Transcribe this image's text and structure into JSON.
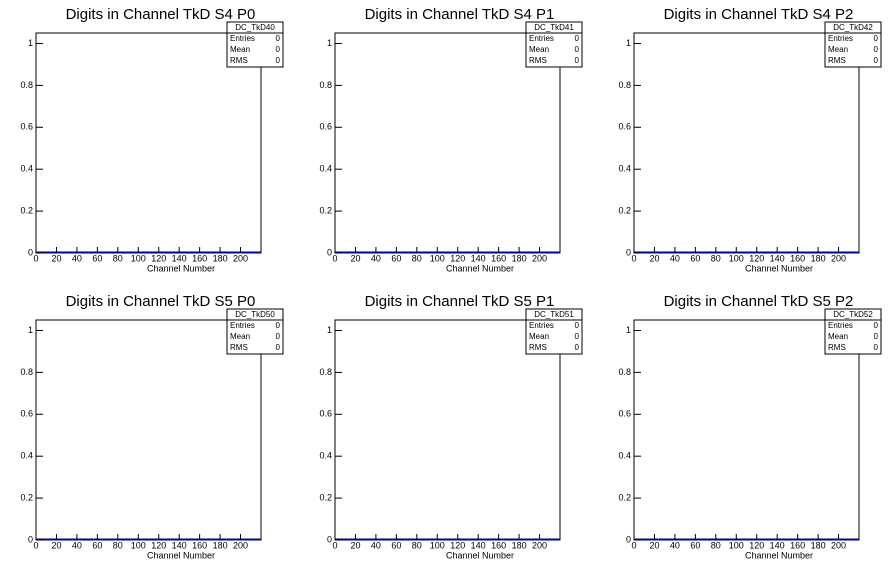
{
  "chart_data": [
    {
      "type": "histogram",
      "title": "Digits in Channel TkD S4 P0",
      "x_label": "Channel Number",
      "xlim": [
        0,
        220
      ],
      "ylim": [
        0,
        1.05
      ],
      "xticks": [
        0,
        20,
        40,
        60,
        80,
        100,
        120,
        140,
        160,
        180,
        200
      ],
      "yticks": [
        0,
        0.2,
        0.4,
        0.6,
        0.8,
        1
      ],
      "color": "#000099",
      "stats": {
        "name": "DC_TkD40",
        "rows": [
          {
            "label": "Entries",
            "value": 0
          },
          {
            "label": "Mean",
            "value": 0
          },
          {
            "label": "RMS",
            "value": 0
          }
        ]
      }
    },
    {
      "type": "histogram",
      "title": "Digits in Channel TkD S4 P1",
      "x_label": "Channel Number",
      "xlim": [
        0,
        220
      ],
      "ylim": [
        0,
        1.05
      ],
      "xticks": [
        0,
        20,
        40,
        60,
        80,
        100,
        120,
        140,
        160,
        180,
        200
      ],
      "yticks": [
        0,
        0.2,
        0.4,
        0.6,
        0.8,
        1
      ],
      "color": "#000099",
      "stats": {
        "name": "DC_TkD41",
        "rows": [
          {
            "label": "Entries",
            "value": 0
          },
          {
            "label": "Mean",
            "value": 0
          },
          {
            "label": "RMS",
            "value": 0
          }
        ]
      }
    },
    {
      "type": "histogram",
      "title": "Digits in Channel TkD S4 P2",
      "x_label": "Channel Number",
      "xlim": [
        0,
        220
      ],
      "ylim": [
        0,
        1.05
      ],
      "xticks": [
        0,
        20,
        40,
        60,
        80,
        100,
        120,
        140,
        160,
        180,
        200
      ],
      "yticks": [
        0,
        0.2,
        0.4,
        0.6,
        0.8,
        1
      ],
      "color": "#000099",
      "stats": {
        "name": "DC_TkD42",
        "rows": [
          {
            "label": "Entries",
            "value": 0
          },
          {
            "label": "Mean",
            "value": 0
          },
          {
            "label": "RMS",
            "value": 0
          }
        ]
      }
    },
    {
      "type": "histogram",
      "title": "Digits in Channel TkD S5 P0",
      "x_label": "Channel Number",
      "xlim": [
        0,
        220
      ],
      "ylim": [
        0,
        1.05
      ],
      "xticks": [
        0,
        20,
        40,
        60,
        80,
        100,
        120,
        140,
        160,
        180,
        200
      ],
      "yticks": [
        0,
        0.2,
        0.4,
        0.6,
        0.8,
        1
      ],
      "color": "#000099",
      "stats": {
        "name": "DC_TkD50",
        "rows": [
          {
            "label": "Entries",
            "value": 0
          },
          {
            "label": "Mean",
            "value": 0
          },
          {
            "label": "RMS",
            "value": 0
          }
        ]
      }
    },
    {
      "type": "histogram",
      "title": "Digits in Channel TkD S5 P1",
      "x_label": "Channel Number",
      "xlim": [
        0,
        220
      ],
      "ylim": [
        0,
        1.05
      ],
      "xticks": [
        0,
        20,
        40,
        60,
        80,
        100,
        120,
        140,
        160,
        180,
        200
      ],
      "yticks": [
        0,
        0.2,
        0.4,
        0.6,
        0.8,
        1
      ],
      "color": "#000099",
      "stats": {
        "name": "DC_TkD51",
        "rows": [
          {
            "label": "Entries",
            "value": 0
          },
          {
            "label": "Mean",
            "value": 0
          },
          {
            "label": "RMS",
            "value": 0
          }
        ]
      }
    },
    {
      "type": "histogram",
      "title": "Digits in Channel TkD S5 P2",
      "x_label": "Channel Number",
      "xlim": [
        0,
        220
      ],
      "ylim": [
        0,
        1.05
      ],
      "xticks": [
        0,
        20,
        40,
        60,
        80,
        100,
        120,
        140,
        160,
        180,
        200
      ],
      "yticks": [
        0,
        0.2,
        0.4,
        0.6,
        0.8,
        1
      ],
      "color": "#000099",
      "stats": {
        "name": "DC_TkD52",
        "rows": [
          {
            "label": "Entries",
            "value": 0
          },
          {
            "label": "Mean",
            "value": 0
          },
          {
            "label": "RMS",
            "value": 0
          }
        ]
      }
    }
  ]
}
